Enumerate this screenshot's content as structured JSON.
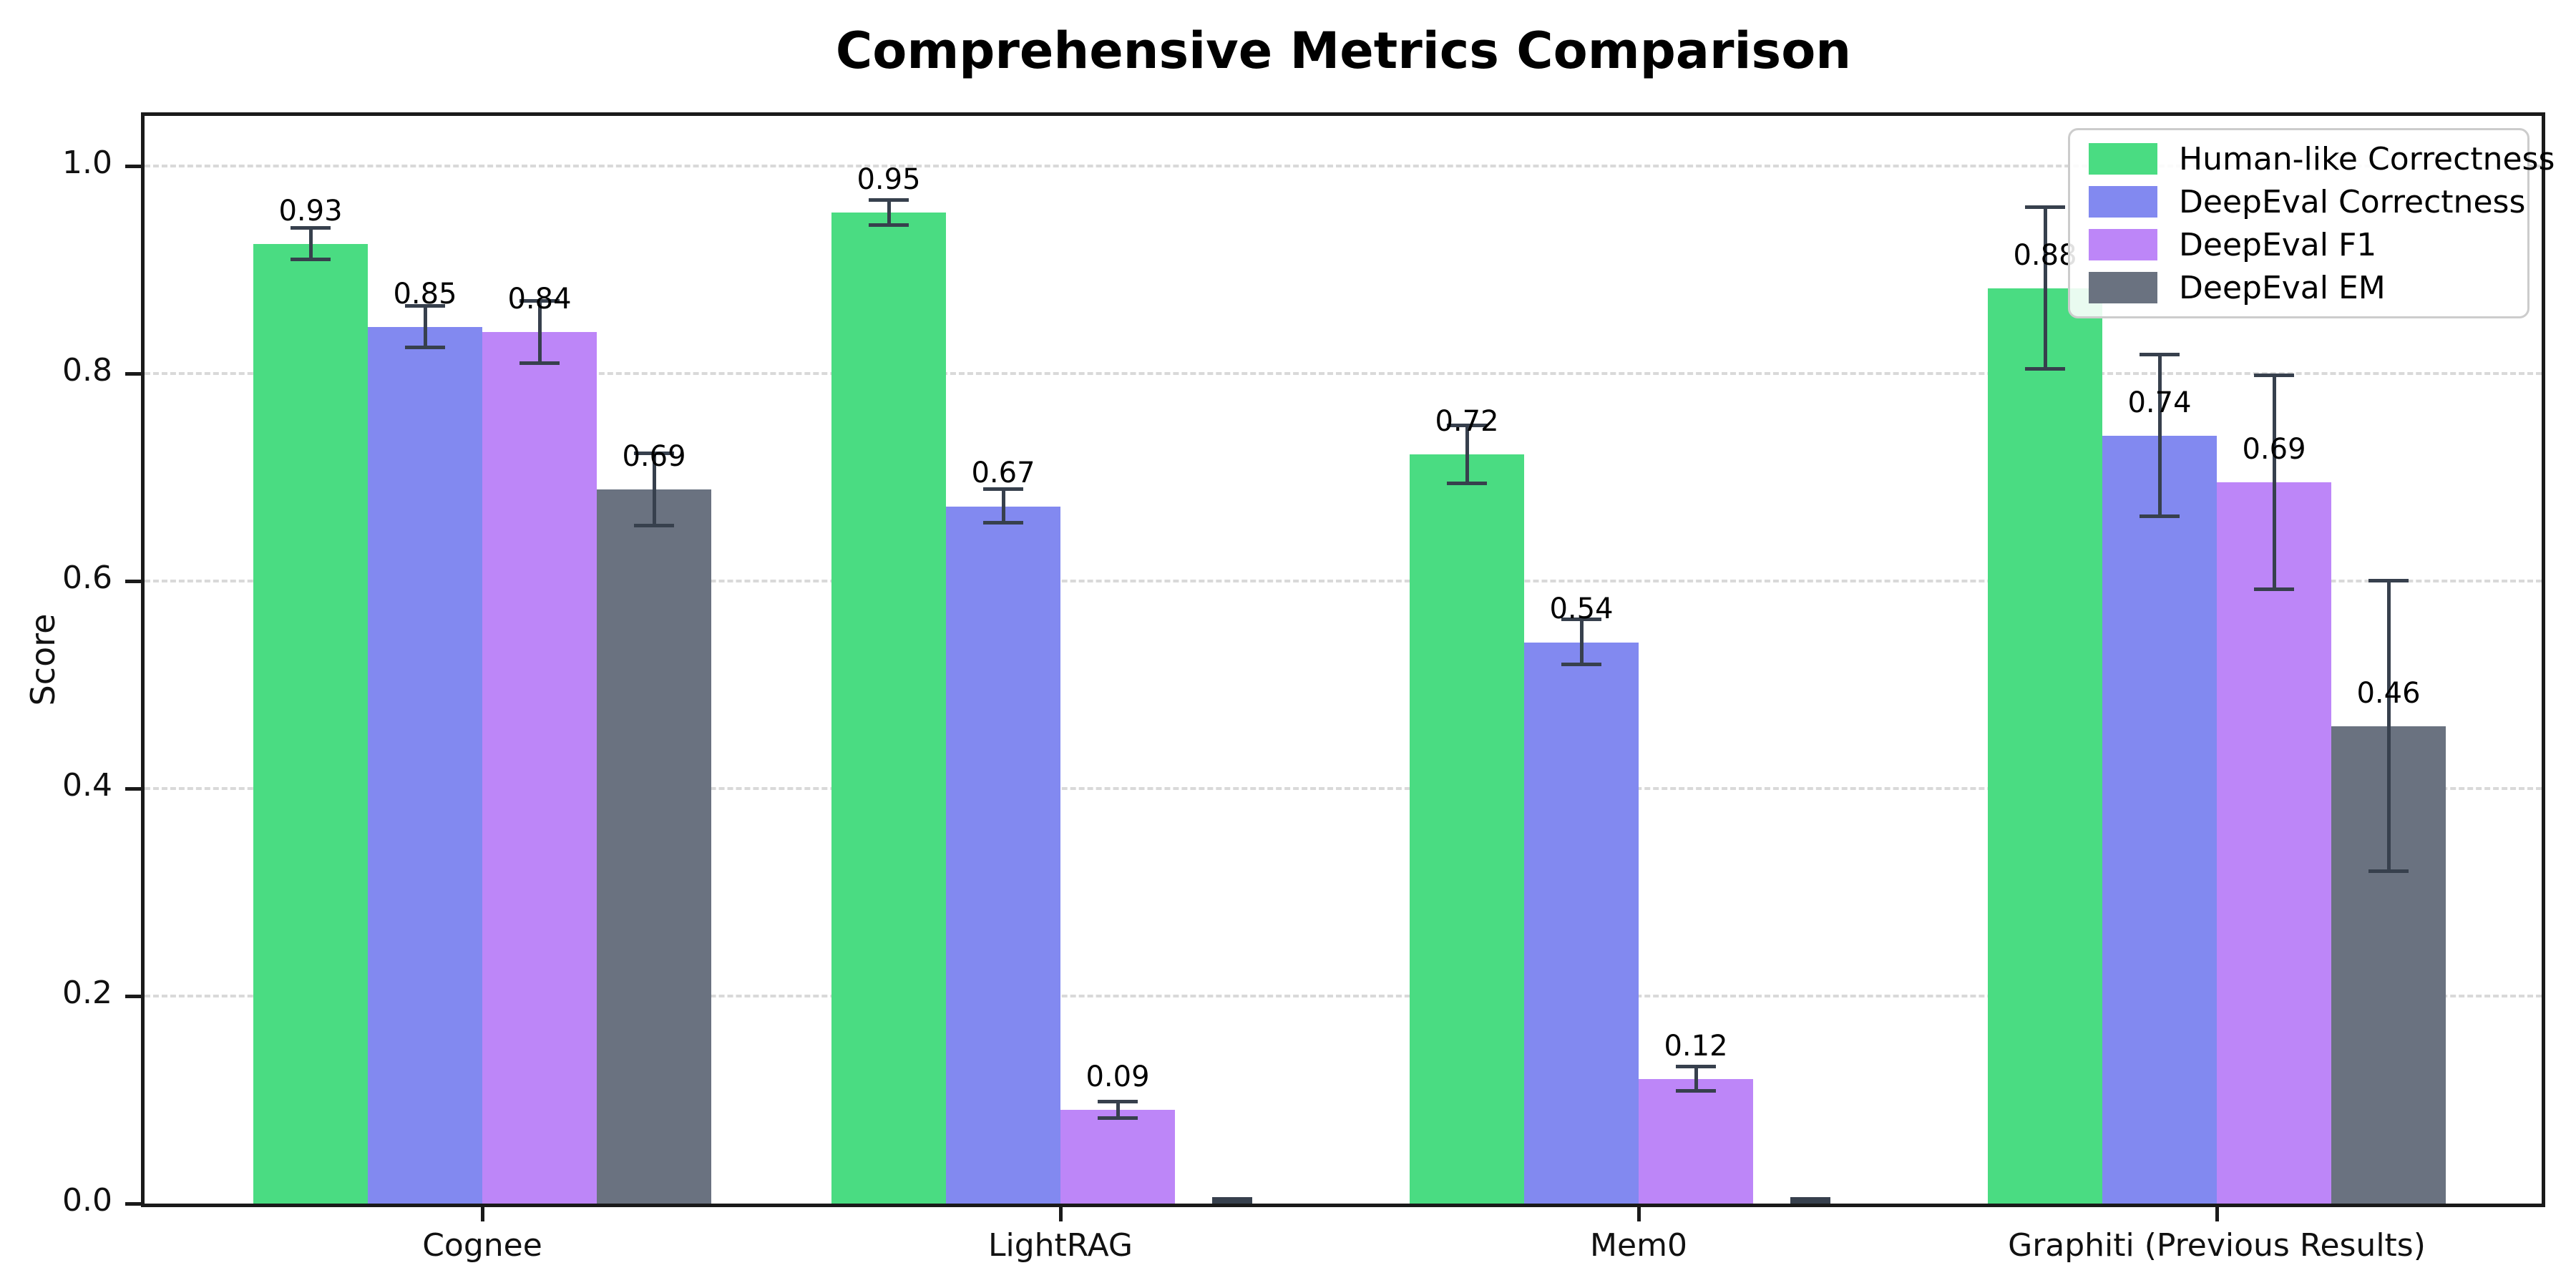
{
  "figure": {
    "title": "Comprehensive Metrics Comparison",
    "ylabel": "Score"
  },
  "chart_data": {
    "type": "bar",
    "title": "Comprehensive Metrics Comparison",
    "xlabel": "",
    "ylabel": "Score",
    "categories": [
      "Cognee",
      "LightRAG",
      "Mem0",
      "Graphiti (Previous Results)"
    ],
    "series": [
      {
        "name": "Human-like Correctness",
        "slug": "human-like-correctness",
        "color": "#4adc82",
        "values": [
          0.925,
          0.955,
          0.722,
          0.882
        ],
        "labels": [
          "0.93",
          "0.95",
          "0.72",
          "0.88"
        ],
        "errors": [
          0.015,
          0.012,
          0.028,
          0.078
        ]
      },
      {
        "name": "DeepEval Correctness",
        "slug": "deepeval-correctness",
        "color": "#8289f0",
        "values": [
          0.845,
          0.672,
          0.541,
          0.74
        ],
        "labels": [
          "0.85",
          "0.67",
          "0.54",
          "0.74"
        ],
        "errors": [
          0.02,
          0.016,
          0.022,
          0.078
        ]
      },
      {
        "name": "DeepEval F1",
        "slug": "deepeval-f1",
        "color": "#bd86f8",
        "values": [
          0.84,
          0.09,
          0.12,
          0.695
        ],
        "labels": [
          "0.84",
          "0.09",
          "0.12",
          "0.69"
        ],
        "errors": [
          0.03,
          0.008,
          0.012,
          0.103
        ]
      },
      {
        "name": "DeepEval EM",
        "slug": "deepeval-em",
        "color": "#6a7280",
        "values": [
          0.688,
          0.0,
          0.0,
          0.46
        ],
        "labels": [
          "0.69",
          "",
          "",
          "0.46"
        ],
        "errors": [
          0.035,
          0.004,
          0.004,
          0.14
        ]
      }
    ],
    "ytick_labels": [
      "0.0",
      "0.2",
      "0.4",
      "0.6",
      "0.8",
      "1.0"
    ],
    "yticks": [
      0.0,
      0.2,
      0.4,
      0.6,
      0.8,
      1.0
    ],
    "ylim": [
      0,
      1.05
    ],
    "grid": {
      "axis": "y",
      "style": "dashed",
      "color": "#d9d9d9"
    },
    "legend": {
      "position": "upper right",
      "entries": [
        "Human-like Correctness",
        "DeepEval Correctness",
        "DeepEval F1",
        "DeepEval EM"
      ]
    },
    "error_bar_color": "#37404d"
  }
}
